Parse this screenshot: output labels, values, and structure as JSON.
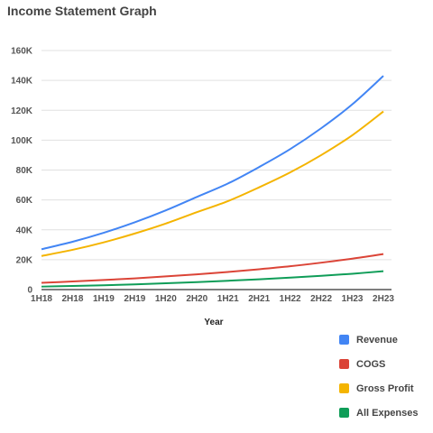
{
  "chart_data": {
    "type": "line",
    "title": "Income Statement Graph",
    "xlabel": "Year",
    "ylabel": "",
    "x": [
      "1H18",
      "2H18",
      "1H19",
      "2H19",
      "1H20",
      "2H20",
      "1H21",
      "2H21",
      "1H22",
      "2H22",
      "1H23",
      "2H23"
    ],
    "ylim": [
      0,
      160000
    ],
    "yticks": [
      0,
      20000,
      40000,
      60000,
      80000,
      100000,
      120000,
      140000,
      160000
    ],
    "ytick_labels": [
      "0",
      "20K",
      "40K",
      "60K",
      "80K",
      "100K",
      "120K",
      "140K",
      "160K"
    ],
    "grid": true,
    "legend_position": "bottom-right",
    "series": [
      {
        "name": "Revenue",
        "color": "#4285f4",
        "values": [
          27000,
          32000,
          38000,
          45000,
          53000,
          62000,
          71000,
          82000,
          94000,
          108000,
          124000,
          143000
        ]
      },
      {
        "name": "COGS",
        "color": "#db4437",
        "values": [
          4500,
          5400,
          6400,
          7500,
          8800,
          10200,
          11800,
          13600,
          15600,
          18000,
          20700,
          23800
        ]
      },
      {
        "name": "Gross Profit",
        "color": "#f4b400",
        "values": [
          22500,
          26600,
          31600,
          37500,
          44200,
          51800,
          59200,
          68400,
          78400,
          90000,
          103300,
          119200
        ]
      },
      {
        "name": "All Expenses",
        "color": "#0f9d58",
        "values": [
          2000,
          2400,
          2900,
          3500,
          4200,
          5000,
          5900,
          6900,
          8000,
          9200,
          10600,
          12300
        ]
      }
    ]
  }
}
